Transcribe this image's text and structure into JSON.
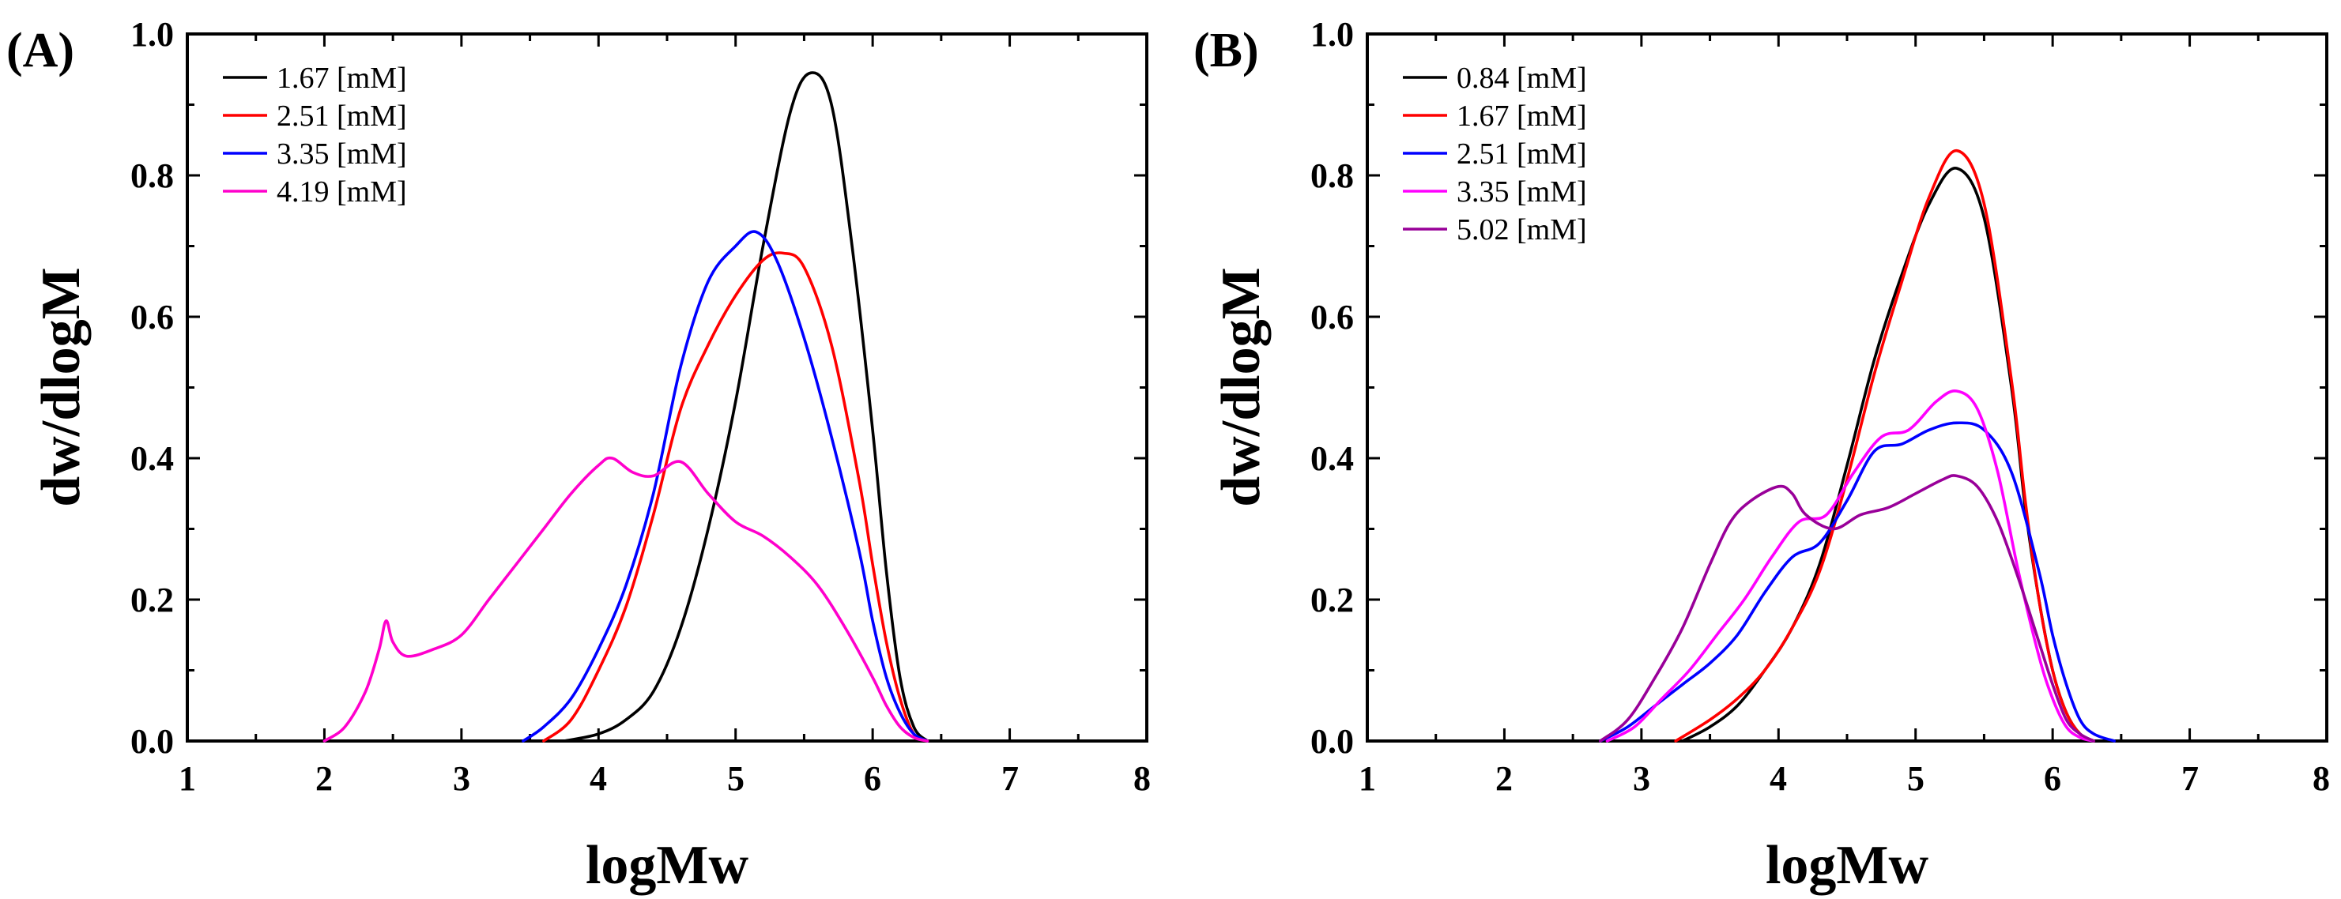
{
  "chart_data": [
    {
      "panel_label": "(A)",
      "type": "line",
      "xlabel": "logMw",
      "ylabel": "dw/dlogM",
      "xlim": [
        1,
        8
      ],
      "ylim": [
        0,
        1
      ],
      "xticks": [
        "1",
        "2",
        "3",
        "4",
        "5",
        "6",
        "7",
        "8"
      ],
      "yticks": [
        "0.0",
        "0.2",
        "0.4",
        "0.6",
        "0.8",
        "1.0"
      ],
      "legend_position": "top-left",
      "series": [
        {
          "name": "1.67 [mM]",
          "color": "#000000",
          "x": [
            3.75,
            4.0,
            4.2,
            4.4,
            4.6,
            4.8,
            5.0,
            5.2,
            5.4,
            5.55,
            5.7,
            5.85,
            6.0,
            6.1,
            6.2,
            6.3,
            6.4
          ],
          "y": [
            0.0,
            0.01,
            0.03,
            0.07,
            0.16,
            0.3,
            0.48,
            0.7,
            0.89,
            0.945,
            0.9,
            0.7,
            0.44,
            0.24,
            0.09,
            0.02,
            0.0
          ]
        },
        {
          "name": "2.51 [mM]",
          "color": "#ff0000",
          "x": [
            3.6,
            3.8,
            4.0,
            4.2,
            4.4,
            4.6,
            4.8,
            5.0,
            5.2,
            5.35,
            5.5,
            5.7,
            5.9,
            6.0,
            6.1,
            6.2,
            6.3,
            6.4
          ],
          "y": [
            0.0,
            0.03,
            0.1,
            0.19,
            0.32,
            0.47,
            0.56,
            0.63,
            0.68,
            0.69,
            0.67,
            0.56,
            0.37,
            0.25,
            0.14,
            0.06,
            0.01,
            0.0
          ]
        },
        {
          "name": "3.35 [mM]",
          "color": "#0000ff",
          "x": [
            3.45,
            3.6,
            3.8,
            4.0,
            4.2,
            4.4,
            4.6,
            4.8,
            5.0,
            5.15,
            5.3,
            5.5,
            5.7,
            5.9,
            6.0,
            6.1,
            6.2,
            6.3,
            6.4
          ],
          "y": [
            0.0,
            0.02,
            0.06,
            0.13,
            0.22,
            0.35,
            0.53,
            0.65,
            0.7,
            0.72,
            0.68,
            0.57,
            0.43,
            0.27,
            0.17,
            0.09,
            0.04,
            0.01,
            0.0
          ]
        },
        {
          "name": "4.19 [mM]",
          "color": "#ff00cc",
          "x": [
            2.0,
            2.15,
            2.3,
            2.4,
            2.45,
            2.5,
            2.6,
            2.8,
            3.0,
            3.2,
            3.4,
            3.6,
            3.8,
            4.0,
            4.1,
            4.25,
            4.4,
            4.6,
            4.8,
            5.0,
            5.2,
            5.4,
            5.6,
            5.8,
            6.0,
            6.1,
            6.2,
            6.3,
            6.4
          ],
          "y": [
            0.0,
            0.02,
            0.07,
            0.13,
            0.17,
            0.14,
            0.12,
            0.13,
            0.15,
            0.2,
            0.25,
            0.3,
            0.35,
            0.39,
            0.4,
            0.38,
            0.375,
            0.395,
            0.35,
            0.31,
            0.29,
            0.26,
            0.22,
            0.16,
            0.09,
            0.05,
            0.02,
            0.005,
            0.0
          ]
        }
      ]
    },
    {
      "panel_label": "(B)",
      "type": "line",
      "xlabel": "logMw",
      "ylabel": "dw/dlogM",
      "xlim": [
        1,
        8
      ],
      "ylim": [
        0,
        1
      ],
      "xticks": [
        "1",
        "2",
        "3",
        "4",
        "5",
        "6",
        "7",
        "8"
      ],
      "yticks": [
        "0.0",
        "0.2",
        "0.4",
        "0.6",
        "0.8",
        "1.0"
      ],
      "legend_position": "top-left",
      "series": [
        {
          "name": "0.84 [mM]",
          "color": "#000000",
          "x": [
            3.3,
            3.5,
            3.7,
            3.9,
            4.1,
            4.3,
            4.5,
            4.7,
            4.9,
            5.1,
            5.3,
            5.5,
            5.7,
            5.8,
            5.9,
            6.0,
            6.1,
            6.2,
            6.3
          ],
          "y": [
            0.0,
            0.02,
            0.05,
            0.1,
            0.16,
            0.25,
            0.39,
            0.54,
            0.66,
            0.76,
            0.81,
            0.74,
            0.5,
            0.33,
            0.2,
            0.1,
            0.04,
            0.01,
            0.0
          ]
        },
        {
          "name": "1.67 [mM]",
          "color": "#ff0000",
          "x": [
            3.25,
            3.5,
            3.7,
            3.9,
            4.1,
            4.3,
            4.5,
            4.7,
            4.9,
            5.1,
            5.3,
            5.5,
            5.7,
            5.8,
            5.9,
            6.0,
            6.1,
            6.2,
            6.3
          ],
          "y": [
            0.0,
            0.03,
            0.06,
            0.1,
            0.16,
            0.24,
            0.37,
            0.52,
            0.65,
            0.77,
            0.835,
            0.76,
            0.51,
            0.34,
            0.2,
            0.1,
            0.04,
            0.01,
            0.0
          ]
        },
        {
          "name": "2.51 [mM]",
          "color": "#0000ff",
          "x": [
            2.7,
            2.9,
            3.1,
            3.3,
            3.5,
            3.7,
            3.9,
            4.1,
            4.3,
            4.5,
            4.7,
            4.9,
            5.1,
            5.3,
            5.5,
            5.7,
            5.9,
            6.0,
            6.1,
            6.2,
            6.3,
            6.45
          ],
          "y": [
            0.0,
            0.02,
            0.05,
            0.08,
            0.11,
            0.15,
            0.21,
            0.26,
            0.28,
            0.34,
            0.41,
            0.42,
            0.44,
            0.45,
            0.44,
            0.38,
            0.24,
            0.15,
            0.08,
            0.03,
            0.01,
            0.0
          ]
        },
        {
          "name": "3.35 [mM]",
          "color": "#ff00ff",
          "x": [
            2.75,
            2.95,
            3.15,
            3.35,
            3.55,
            3.75,
            3.95,
            4.15,
            4.35,
            4.55,
            4.75,
            4.95,
            5.15,
            5.3,
            5.45,
            5.6,
            5.75,
            5.9,
            6.0,
            6.1,
            6.2,
            6.3
          ],
          "y": [
            0.0,
            0.02,
            0.06,
            0.1,
            0.15,
            0.2,
            0.26,
            0.31,
            0.32,
            0.38,
            0.43,
            0.44,
            0.48,
            0.495,
            0.47,
            0.38,
            0.24,
            0.12,
            0.06,
            0.02,
            0.005,
            0.0
          ]
        },
        {
          "name": "5.02 [mM]",
          "color": "#990099",
          "x": [
            2.7,
            2.9,
            3.1,
            3.3,
            3.5,
            3.65,
            3.8,
            4.0,
            4.1,
            4.2,
            4.4,
            4.6,
            4.8,
            5.0,
            5.2,
            5.3,
            5.45,
            5.6,
            5.75,
            5.9,
            6.0,
            6.1,
            6.2,
            6.3
          ],
          "y": [
            0.0,
            0.03,
            0.09,
            0.16,
            0.25,
            0.31,
            0.34,
            0.36,
            0.35,
            0.32,
            0.3,
            0.32,
            0.33,
            0.35,
            0.37,
            0.375,
            0.36,
            0.31,
            0.23,
            0.14,
            0.08,
            0.03,
            0.01,
            0.0
          ]
        }
      ]
    }
  ]
}
